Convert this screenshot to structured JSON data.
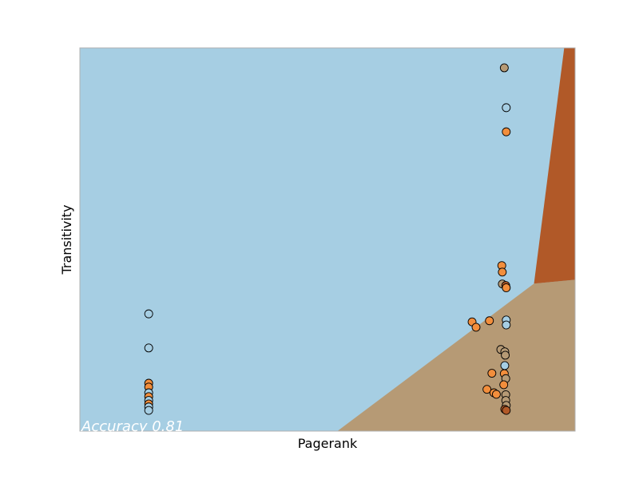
{
  "chart_data": {
    "type": "scatter",
    "title": "",
    "xlabel": "Pagerank",
    "ylabel": "Transitivity",
    "xlim": [
      0,
      1
    ],
    "ylim": [
      0,
      1
    ],
    "x_ticks_visible": false,
    "y_ticks_visible": false,
    "grid": false,
    "annotation": "Accuracy 0.81",
    "annotation_color": "#ffffff",
    "regions": [
      {
        "class": "class_a",
        "color": "#a6cee3"
      },
      {
        "class": "class_b",
        "color": "#b69a75"
      },
      {
        "class": "class_c",
        "color": "#b15928"
      }
    ],
    "boundaries": {
      "a_b_line": [
        [
          0.52,
          0.0
        ],
        [
          0.917,
          0.385
        ]
      ],
      "b_c_line": [
        [
          0.917,
          0.385
        ],
        [
          1.0,
          0.395
        ]
      ],
      "a_c_line": [
        [
          0.917,
          0.385
        ],
        [
          0.978,
          1.0
        ]
      ]
    },
    "points": [
      {
        "x": 0.857,
        "y": 0.948,
        "color": "#b69a75"
      },
      {
        "x": 0.861,
        "y": 0.844,
        "color": "#a6cee3"
      },
      {
        "x": 0.861,
        "y": 0.781,
        "color": "#f28e3c"
      },
      {
        "x": 0.852,
        "y": 0.432,
        "color": "#f28e3c"
      },
      {
        "x": 0.853,
        "y": 0.415,
        "color": "#f28e3c"
      },
      {
        "x": 0.853,
        "y": 0.384,
        "color": "#b69a75"
      },
      {
        "x": 0.86,
        "y": 0.38,
        "color": "#b15928"
      },
      {
        "x": 0.861,
        "y": 0.374,
        "color": "#f28e3c"
      },
      {
        "x": 0.827,
        "y": 0.288,
        "color": "#f28e3c"
      },
      {
        "x": 0.792,
        "y": 0.285,
        "color": "#f28e3c"
      },
      {
        "x": 0.8,
        "y": 0.271,
        "color": "#f28e3c"
      },
      {
        "x": 0.861,
        "y": 0.29,
        "color": "#a6cee3"
      },
      {
        "x": 0.861,
        "y": 0.277,
        "color": "#a6cee3"
      },
      {
        "x": 0.85,
        "y": 0.213,
        "color": "#b69a75"
      },
      {
        "x": 0.858,
        "y": 0.207,
        "color": "#b69a75"
      },
      {
        "x": 0.859,
        "y": 0.198,
        "color": "#b69a75"
      },
      {
        "x": 0.858,
        "y": 0.171,
        "color": "#a6cee3"
      },
      {
        "x": 0.857,
        "y": 0.15,
        "color": "#f28e3c"
      },
      {
        "x": 0.832,
        "y": 0.151,
        "color": "#f28e3c"
      },
      {
        "x": 0.86,
        "y": 0.137,
        "color": "#b69a75"
      },
      {
        "x": 0.856,
        "y": 0.121,
        "color": "#f28e3c"
      },
      {
        "x": 0.822,
        "y": 0.109,
        "color": "#f28e3c"
      },
      {
        "x": 0.836,
        "y": 0.1,
        "color": "#f28e3c"
      },
      {
        "x": 0.841,
        "y": 0.096,
        "color": "#f28e3c"
      },
      {
        "x": 0.86,
        "y": 0.095,
        "color": "#b69a75"
      },
      {
        "x": 0.86,
        "y": 0.08,
        "color": "#b69a75"
      },
      {
        "x": 0.861,
        "y": 0.067,
        "color": "#b69a75"
      },
      {
        "x": 0.858,
        "y": 0.057,
        "color": "#b15928"
      },
      {
        "x": 0.861,
        "y": 0.054,
        "color": "#b15928"
      },
      {
        "x": 0.139,
        "y": 0.306,
        "color": "#a6cee3"
      },
      {
        "x": 0.139,
        "y": 0.217,
        "color": "#a6cee3"
      },
      {
        "x": 0.139,
        "y": 0.125,
        "color": "#f28e3c"
      },
      {
        "x": 0.139,
        "y": 0.115,
        "color": "#f28e3c"
      },
      {
        "x": 0.139,
        "y": 0.1,
        "color": "#a6cee3"
      },
      {
        "x": 0.139,
        "y": 0.09,
        "color": "#f28e3c"
      },
      {
        "x": 0.139,
        "y": 0.08,
        "color": "#a6cee3"
      },
      {
        "x": 0.139,
        "y": 0.071,
        "color": "#f28e3c"
      },
      {
        "x": 0.139,
        "y": 0.063,
        "color": "#a6cee3"
      },
      {
        "x": 0.139,
        "y": 0.054,
        "color": "#a6cee3"
      }
    ]
  }
}
